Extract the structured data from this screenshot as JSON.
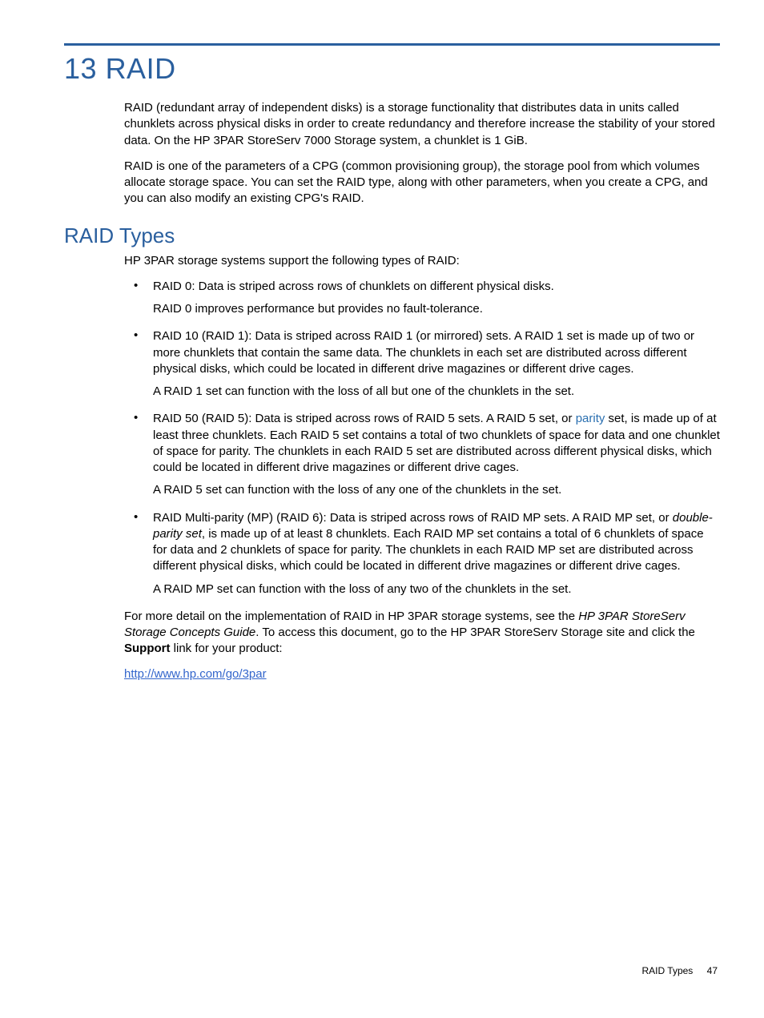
{
  "colors": {
    "rule": "#2a5f9e",
    "h1": "#2a5f9e",
    "h2": "#2a5f9e",
    "body_text": "#000000",
    "link_inline": "#2a6fb0",
    "link_url": "#3366cc",
    "background": "#ffffff"
  },
  "chapter": {
    "number": "13",
    "title": "RAID"
  },
  "intro": {
    "p1": "RAID (redundant array of independent disks) is a storage functionality that distributes data in units called chunklets across physical disks in order to create redundancy and therefore increase the stability of your stored data. On the HP 3PAR StoreServ 7000 Storage system, a chunklet is 1 GiB.",
    "p2": "RAID is one of the parameters of a CPG (common provisioning group), the storage pool from which volumes allocate storage space. You can set the RAID type, along with other parameters, when you create a CPG, and you can also modify an existing CPG's RAID."
  },
  "section": {
    "title": "RAID Types",
    "lead": "HP 3PAR storage systems support the following types of RAID:",
    "items": [
      {
        "p1": "RAID 0: Data is striped across rows of chunklets on different physical disks.",
        "p2": "RAID 0 improves performance but provides no fault-tolerance."
      },
      {
        "p1": "RAID 10 (RAID 1): Data is striped across RAID 1 (or mirrored) sets. A RAID 1 set is made up of two or more chunklets that contain the same data. The chunklets in each set are distributed across different physical disks, which could be located in different drive magazines or different drive cages.",
        "p2": "A RAID 1 set can function with the loss of all but one of the chunklets in the set."
      },
      {
        "p1_pre": "RAID 50 (RAID 5): Data is striped across rows of RAID 5 sets. A RAID 5 set, or ",
        "p1_link": "parity",
        "p1_post": " set, is made up of at least three chunklets. Each RAID 5 set contains a total of two chunklets of space for data and one chunklet of space for parity. The chunklets in each RAID 5 set are distributed across different physical disks, which could be located in different drive magazines or different drive cages.",
        "p2": "A RAID 5 set can function with the loss of any one of the chunklets in the set."
      },
      {
        "p1_pre": "RAID Multi-parity (MP) (RAID 6): Data is striped across rows of RAID MP sets. A RAID MP set, or ",
        "p1_italic": "double-parity set",
        "p1_post": ", is made up of at least 8 chunklets. Each RAID MP set contains a total of 6 chunklets of space for data and 2 chunklets of space for parity. The chunklets in each RAID MP set are distributed across different physical disks, which could be located in different drive magazines or different drive cages.",
        "p2": "A RAID MP set can function with the loss of any two of the chunklets in the set."
      }
    ],
    "tail_pre": "For more detail on the implementation of RAID in HP 3PAR storage systems, see the ",
    "tail_italic": "HP 3PAR StoreServ Storage Concepts Guide",
    "tail_mid": ". To access this document, go to the HP 3PAR StoreServ Storage site and click the ",
    "tail_bold": "Support",
    "tail_post": " link for your product:",
    "url": "http://www.hp.com/go/3par"
  },
  "footer": {
    "label": "RAID Types",
    "page": "47"
  }
}
